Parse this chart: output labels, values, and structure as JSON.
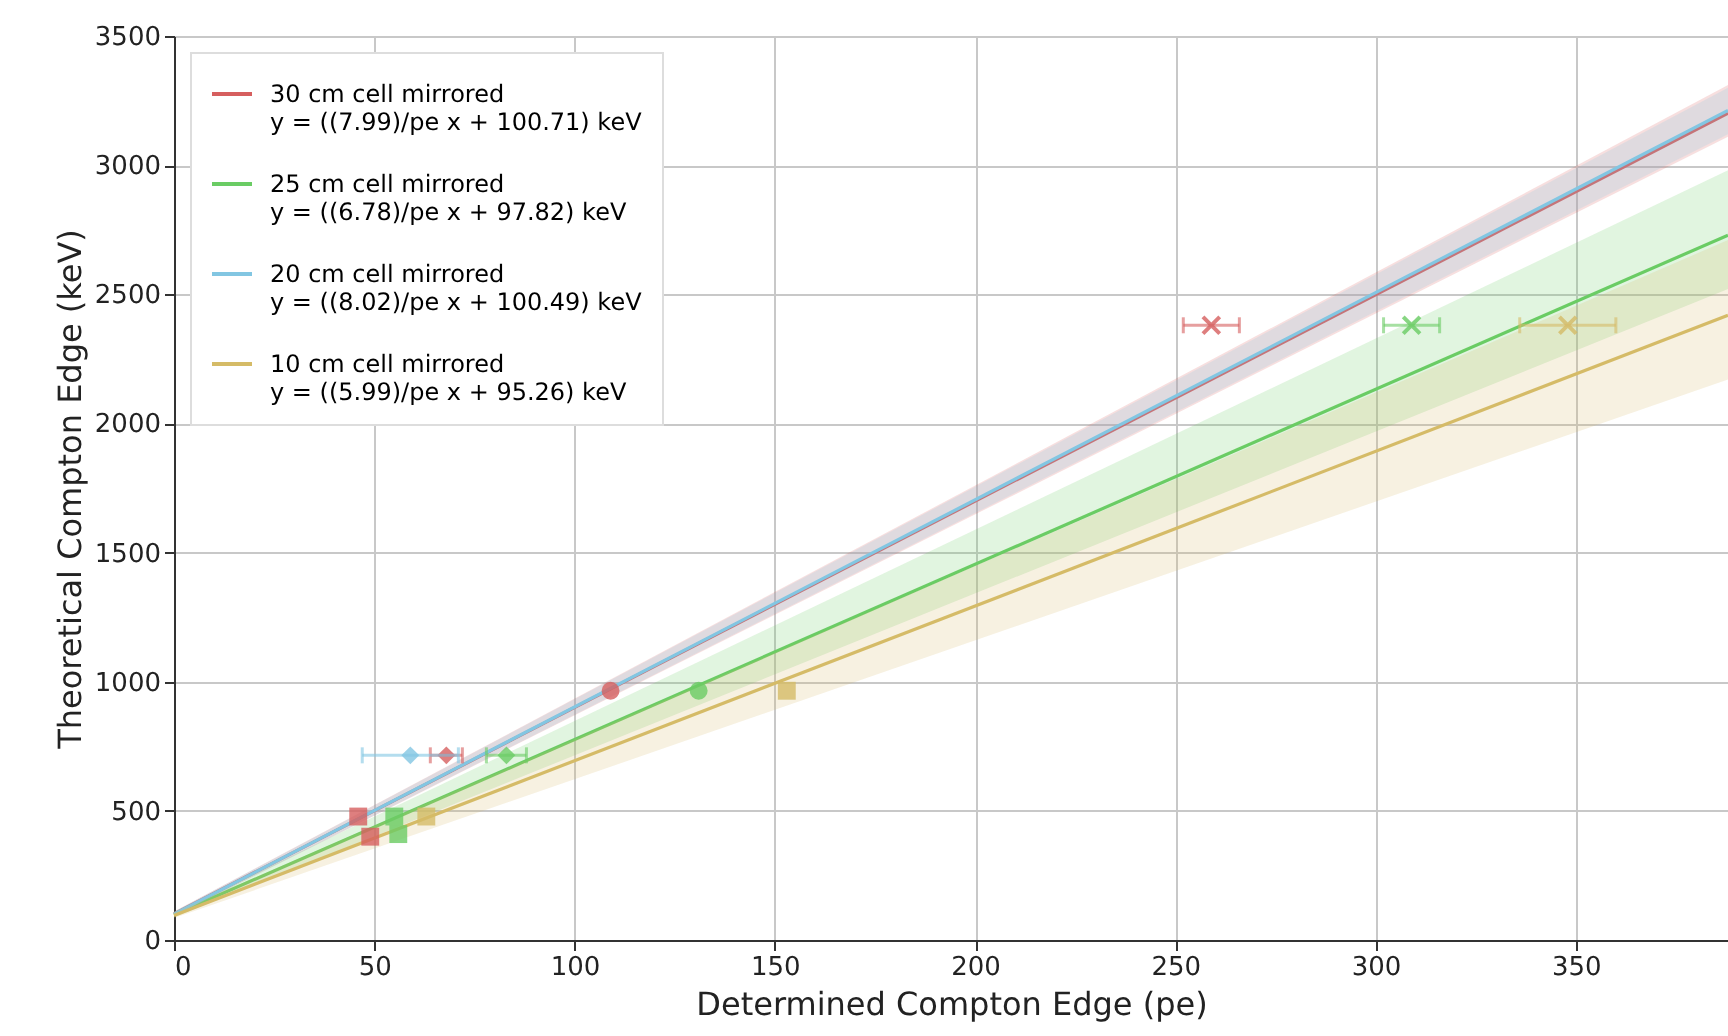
{
  "chart_data": {
    "type": "scatter",
    "xlabel": "Determined Compton Edge (pe)",
    "ylabel": "Theoretical Compton Edge (keV)",
    "xlim": [
      0,
      388
    ],
    "xticks": [
      0,
      50,
      100,
      150,
      200,
      250,
      300,
      350
    ],
    "ylim": [
      0,
      3500
    ],
    "yticks": [
      0,
      500,
      1000,
      1500,
      2000,
      2500,
      3000,
      3500
    ],
    "grid": true,
    "legend": "top left",
    "series": [
      {
        "type": "line",
        "name": "30 cm cell mirrored\ny = ((7.99)/pe x + 100.71) keV",
        "color": "#d65f5f",
        "x": [
          0,
          388
        ],
        "values": [
          101,
          3201
        ],
        "lower": [
          92,
          3110
        ],
        "upper": [
          110,
          3310
        ]
      },
      {
        "type": "line",
        "name": "25 cm cell mirrored\ny = ((6.78)/pe x + 97.82) keV",
        "color": "#6acc64",
        "x": [
          0,
          388
        ],
        "values": [
          98,
          2729
        ],
        "lower": [
          88,
          2520
        ],
        "upper": [
          108,
          2980
        ]
      },
      {
        "type": "line",
        "name": "20 cm cell mirrored\ny = ((8.02)/pe x + 100.49) keV",
        "color": "#82c6e2",
        "x": [
          0,
          388
        ],
        "values": [
          100,
          3212
        ],
        "lower": [
          92,
          3120
        ],
        "upper": [
          110,
          3300
        ]
      },
      {
        "type": "line",
        "name": "10 cm cell mirrored\ny = ((5.99)/pe x + 95.26) keV",
        "color": "#d5bb67",
        "x": [
          0,
          388
        ],
        "values": [
          95,
          2419
        ],
        "lower": [
          85,
          2170
        ],
        "upper": [
          106,
          2710
        ]
      },
      {
        "type": "scatter",
        "marker": "circle",
        "color": "#d65f5f",
        "x": [
          109
        ],
        "values": [
          965
        ]
      },
      {
        "type": "scatter",
        "marker": "diamond",
        "color": "#d65f5f",
        "x": [
          68
        ],
        "values": [
          715
        ],
        "xerrors": [
          4
        ]
      },
      {
        "type": "scatter",
        "marker": "square",
        "color": "#d65f5f",
        "x": [
          46,
          49
        ],
        "values": [
          478,
          400
        ]
      },
      {
        "type": "scatter",
        "marker": "cross",
        "color": "#d65f5f",
        "x": [
          259
        ],
        "values": [
          2380
        ],
        "xerrors": [
          7
        ]
      },
      {
        "type": "scatter",
        "marker": "circle",
        "color": "#6acc64",
        "x": [
          131
        ],
        "values": [
          965
        ]
      },
      {
        "type": "scatter",
        "marker": "diamond",
        "color": "#6acc64",
        "x": [
          83
        ],
        "values": [
          715
        ],
        "xerrors": [
          5
        ]
      },
      {
        "type": "scatter",
        "marker": "square",
        "color": "#6acc64",
        "x": [
          55,
          56
        ],
        "values": [
          478,
          410
        ]
      },
      {
        "type": "scatter",
        "marker": "cross",
        "color": "#6acc64",
        "x": [
          309
        ],
        "values": [
          2380
        ],
        "xerrors": [
          7
        ]
      },
      {
        "type": "scatter",
        "marker": "diamond",
        "color": "#82c6e2",
        "x": [
          59
        ],
        "values": [
          715
        ],
        "xerrors": [
          12
        ]
      },
      {
        "type": "scatter",
        "marker": "square",
        "color": "#d5bb67",
        "x": [
          153,
          63
        ],
        "values": [
          965,
          478
        ]
      },
      {
        "type": "scatter",
        "marker": "cross",
        "color": "#d5bb67",
        "x": [
          348
        ],
        "values": [
          2380
        ],
        "xerrors": [
          12
        ]
      }
    ]
  }
}
